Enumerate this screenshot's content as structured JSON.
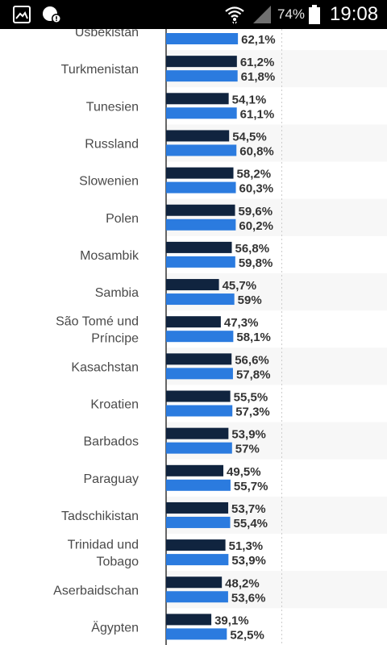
{
  "status_bar": {
    "battery": "74%",
    "time": "19:08",
    "icons": [
      "gallery-icon",
      "notification-alert-icon",
      "wifi-icon",
      "signal-icon",
      "battery-icon"
    ]
  },
  "colors": {
    "series_dark": "#10243f",
    "series_blue": "#2b7bdf",
    "row_shade": "#f7f7f7",
    "grid": "#cccccc",
    "axis": "#333333"
  },
  "chart_data": {
    "type": "bar",
    "orientation": "horizontal",
    "categories": [
      [
        "Usbekistan"
      ],
      [
        "Turkmenistan"
      ],
      [
        "Tunesien"
      ],
      [
        "Russland"
      ],
      [
        "Slowenien"
      ],
      [
        "Polen"
      ],
      [
        "Mosambik"
      ],
      [
        "Sambia"
      ],
      [
        "São Tomé und",
        "Príncipe"
      ],
      [
        "Kasachstan"
      ],
      [
        "Kroatien"
      ],
      [
        "Barbados"
      ],
      [
        "Paraguay"
      ],
      [
        "Tadschikistan"
      ],
      [
        "Trinidad und",
        "Tobago"
      ],
      [
        "Aserbaidschan"
      ],
      [
        "Ägypten"
      ]
    ],
    "series": [
      {
        "color": "#10243f",
        "values": [
          null,
          61.2,
          54.1,
          54.5,
          58.2,
          59.6,
          56.8,
          45.7,
          47.3,
          56.6,
          55.5,
          53.9,
          49.5,
          53.7,
          51.3,
          48.2,
          39.1
        ],
        "labels": [
          "",
          "61,2%",
          "54,1%",
          "54,5%",
          "58,2%",
          "59,6%",
          "56,8%",
          "45,7%",
          "47,3%",
          "56,6%",
          "55,5%",
          "53,9%",
          "49,5%",
          "53,7%",
          "51,3%",
          "48,2%",
          "39,1%"
        ]
      },
      {
        "color": "#2b7bdf",
        "values": [
          62.1,
          61.8,
          61.1,
          60.8,
          60.3,
          60.2,
          59.8,
          59,
          58.1,
          57.8,
          57.3,
          57,
          55.7,
          55.4,
          53.9,
          53.6,
          52.5
        ],
        "labels": [
          "62,1%",
          "61,8%",
          "61,1%",
          "60,8%",
          "60,3%",
          "60,2%",
          "59,8%",
          "59%",
          "58,1%",
          "57,8%",
          "57,3%",
          "57%",
          "55,7%",
          "55,4%",
          "53,9%",
          "53,6%",
          "52,5%"
        ]
      }
    ],
    "xlim": [
      0,
      300
    ],
    "gridlines": [
      0,
      100,
      200,
      300
    ],
    "grid": true,
    "legend": "none"
  }
}
